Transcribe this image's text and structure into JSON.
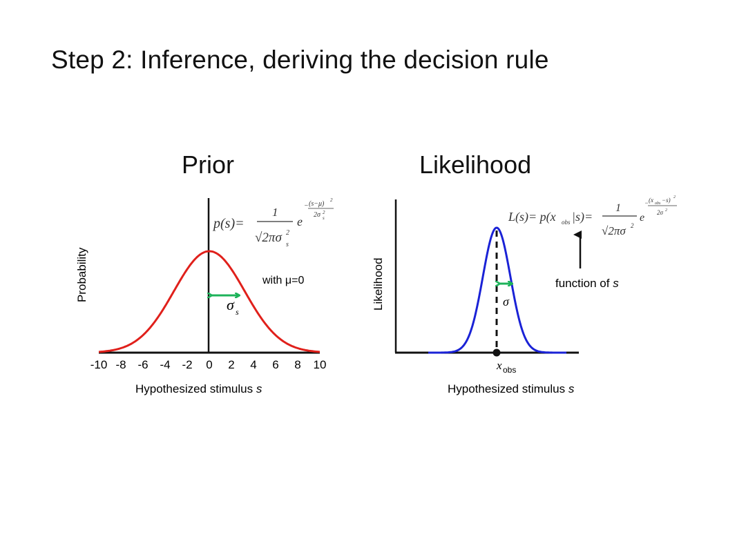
{
  "slide": {
    "title": "Step 2: Inference, deriving the decision rule"
  },
  "prior": {
    "title": "Prior",
    "ylabel": "Probability",
    "xlabel": "Hypothesized stimulus",
    "xlabel_var": "s",
    "ticks": [
      "-10",
      "-8",
      "-6",
      "-4",
      "-2",
      "0",
      "2",
      "4",
      "6",
      "8",
      "10"
    ],
    "annotation": "with μ=0",
    "sigma_label": "σ",
    "sigma_sub": "s",
    "formula": {
      "lhs": "p(s)=",
      "num": "1",
      "den": "√2πσ",
      "den_sub": "s",
      "den_sup": "2",
      "e": "e",
      "exp_num": "(s−μ)",
      "exp_num_sup": "2",
      "exp_den": "2σ",
      "exp_den_sub": "s",
      "exp_den_sup": "2",
      "minus": "−"
    },
    "curve_color": "#e0201b",
    "arrow_color": "#1db35a"
  },
  "likelihood": {
    "title": "Likelihood",
    "ylabel": "Likelihood",
    "xlabel": "Hypothesized stimulus",
    "xlabel_var": "s",
    "x_obs_label": "x",
    "x_obs_sub": "obs",
    "sigma_label": "σ",
    "annotation": "function of",
    "annotation_var": "s",
    "formula": {
      "lhs": "L(s)= p(x",
      "lhs_sub": "obs",
      "lhs_mid": "|s)=",
      "num": "1",
      "den": "√2πσ",
      "den_sup": "2",
      "e": "e",
      "exp_num": "(x",
      "exp_num_sub": "obs",
      "exp_num_end": "−s)",
      "exp_num_sup": "2",
      "exp_den": "2σ",
      "exp_den_sup": "2",
      "minus": "−"
    },
    "curve_color": "#1a22d6",
    "arrow_color": "#1db35a"
  }
}
